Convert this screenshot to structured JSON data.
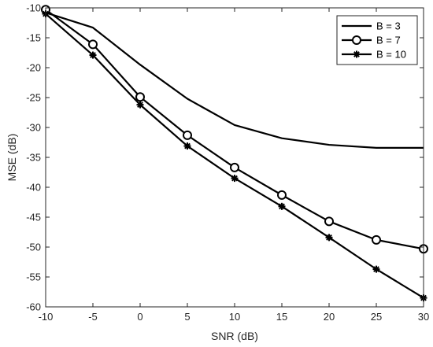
{
  "chart_data": {
    "type": "line",
    "xlabel": "SNR (dB)",
    "ylabel": "MSE (dB)",
    "xlim": [
      -10,
      30
    ],
    "ylim": [
      -60,
      -10
    ],
    "xticks": [
      -10,
      -5,
      0,
      5,
      10,
      15,
      20,
      25,
      30
    ],
    "yticks": [
      -10,
      -15,
      -20,
      -25,
      -30,
      -35,
      -40,
      -45,
      -50,
      -55,
      -60
    ],
    "x": [
      -10,
      -5,
      0,
      5,
      10,
      15,
      20,
      25,
      30
    ],
    "grid": false,
    "legend_position": "top-right",
    "color": "#000000",
    "series": [
      {
        "name": "B = 3",
        "marker": "none",
        "values": [
          -10.8,
          -13.3,
          -19.5,
          -25.2,
          -29.6,
          -31.8,
          -32.9,
          -33.4,
          -33.4
        ]
      },
      {
        "name": "B = 7",
        "marker": "circle",
        "values": [
          -10.3,
          -16.1,
          -24.9,
          -31.3,
          -36.7,
          -41.3,
          -45.7,
          -48.8,
          -50.3
        ]
      },
      {
        "name": "B = 10",
        "marker": "star",
        "values": [
          -11.0,
          -17.9,
          -26.2,
          -33.1,
          -38.5,
          -43.2,
          -48.4,
          -53.7,
          -58.5
        ]
      }
    ]
  }
}
